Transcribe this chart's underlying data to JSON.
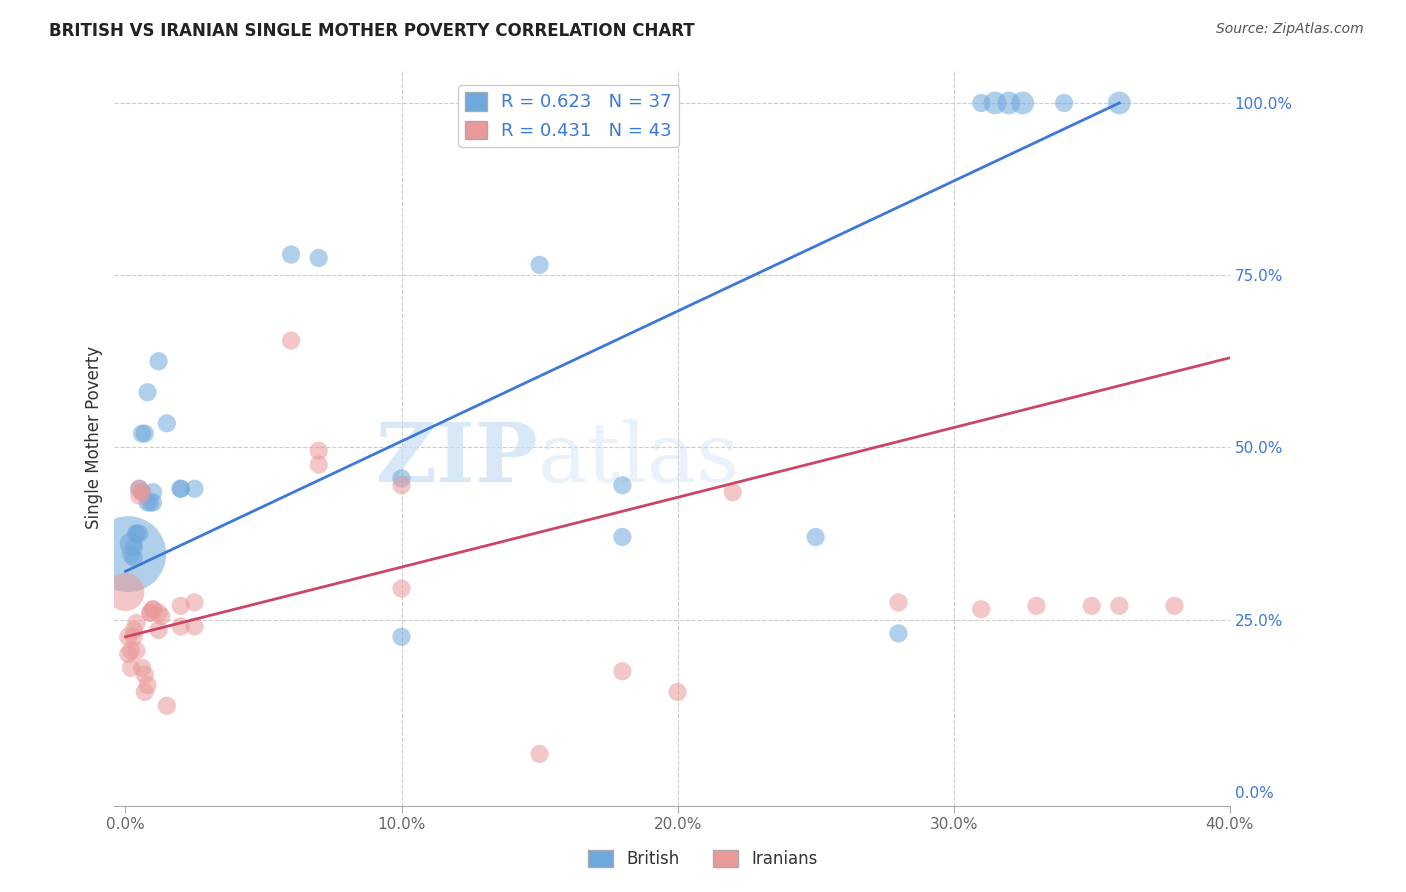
{
  "title": "BRITISH VS IRANIAN SINGLE MOTHER POVERTY CORRELATION CHART",
  "source": "Source: ZipAtlas.com",
  "ylabel": "Single Mother Poverty",
  "xlim": [
    0.0,
    0.4
  ],
  "ylim": [
    0.0,
    1.05
  ],
  "legend_british_R": "R = 0.623",
  "legend_british_N": "N = 37",
  "legend_iranian_R": "R = 0.431",
  "legend_iranian_N": "N = 43",
  "british_color": "#6fa8dc",
  "iranian_color": "#ea9999",
  "british_line_color": "#3c78d8",
  "iranian_line_color": "#cc4466",
  "blue_line_x0": 0.0,
  "blue_line_y0": 0.32,
  "blue_line_x1": 0.36,
  "blue_line_y1": 1.0,
  "pink_line_x0": 0.0,
  "pink_line_y0": 0.225,
  "pink_line_x1": 0.4,
  "pink_line_y1": 0.63,
  "british_data": [
    [
      0.001,
      0.345,
      50
    ],
    [
      0.002,
      0.36,
      15
    ],
    [
      0.002,
      0.345,
      12
    ],
    [
      0.003,
      0.355,
      12
    ],
    [
      0.003,
      0.34,
      12
    ],
    [
      0.004,
      0.375,
      12
    ],
    [
      0.004,
      0.375,
      12
    ],
    [
      0.005,
      0.44,
      12
    ],
    [
      0.005,
      0.375,
      12
    ],
    [
      0.006,
      0.52,
      12
    ],
    [
      0.006,
      0.435,
      12
    ],
    [
      0.007,
      0.52,
      12
    ],
    [
      0.008,
      0.58,
      12
    ],
    [
      0.008,
      0.42,
      12
    ],
    [
      0.009,
      0.42,
      12
    ],
    [
      0.01,
      0.435,
      12
    ],
    [
      0.01,
      0.42,
      12
    ],
    [
      0.012,
      0.625,
      12
    ],
    [
      0.015,
      0.535,
      12
    ],
    [
      0.02,
      0.44,
      12
    ],
    [
      0.02,
      0.44,
      12
    ],
    [
      0.025,
      0.44,
      12
    ],
    [
      0.06,
      0.78,
      12
    ],
    [
      0.07,
      0.775,
      12
    ],
    [
      0.1,
      0.455,
      12
    ],
    [
      0.1,
      0.225,
      12
    ],
    [
      0.15,
      0.765,
      12
    ],
    [
      0.18,
      0.445,
      12
    ],
    [
      0.18,
      0.37,
      12
    ],
    [
      0.25,
      0.37,
      12
    ],
    [
      0.28,
      0.23,
      12
    ],
    [
      0.31,
      1.0,
      12
    ],
    [
      0.315,
      1.0,
      15
    ],
    [
      0.32,
      1.0,
      15
    ],
    [
      0.325,
      1.0,
      15
    ],
    [
      0.34,
      1.0,
      12
    ],
    [
      0.36,
      1.0,
      15
    ]
  ],
  "iranian_data": [
    [
      0.0,
      0.29,
      25
    ],
    [
      0.001,
      0.225,
      12
    ],
    [
      0.001,
      0.2,
      12
    ],
    [
      0.002,
      0.205,
      12
    ],
    [
      0.002,
      0.18,
      12
    ],
    [
      0.003,
      0.235,
      12
    ],
    [
      0.003,
      0.225,
      12
    ],
    [
      0.004,
      0.205,
      12
    ],
    [
      0.004,
      0.245,
      12
    ],
    [
      0.005,
      0.44,
      12
    ],
    [
      0.005,
      0.43,
      12
    ],
    [
      0.006,
      0.435,
      12
    ],
    [
      0.006,
      0.18,
      12
    ],
    [
      0.007,
      0.17,
      12
    ],
    [
      0.007,
      0.145,
      12
    ],
    [
      0.008,
      0.155,
      12
    ],
    [
      0.009,
      0.26,
      12
    ],
    [
      0.009,
      0.26,
      12
    ],
    [
      0.01,
      0.265,
      12
    ],
    [
      0.01,
      0.265,
      12
    ],
    [
      0.012,
      0.26,
      12
    ],
    [
      0.012,
      0.235,
      12
    ],
    [
      0.013,
      0.255,
      12
    ],
    [
      0.015,
      0.125,
      12
    ],
    [
      0.02,
      0.27,
      12
    ],
    [
      0.02,
      0.24,
      12
    ],
    [
      0.025,
      0.275,
      12
    ],
    [
      0.025,
      0.24,
      12
    ],
    [
      0.06,
      0.655,
      12
    ],
    [
      0.07,
      0.495,
      12
    ],
    [
      0.07,
      0.475,
      12
    ],
    [
      0.1,
      0.445,
      12
    ],
    [
      0.1,
      0.295,
      12
    ],
    [
      0.15,
      0.055,
      12
    ],
    [
      0.18,
      0.175,
      12
    ],
    [
      0.2,
      0.145,
      12
    ],
    [
      0.22,
      0.435,
      12
    ],
    [
      0.28,
      0.275,
      12
    ],
    [
      0.31,
      0.265,
      12
    ],
    [
      0.33,
      0.27,
      12
    ],
    [
      0.35,
      0.27,
      12
    ],
    [
      0.36,
      0.27,
      12
    ],
    [
      0.38,
      0.27,
      12
    ]
  ]
}
